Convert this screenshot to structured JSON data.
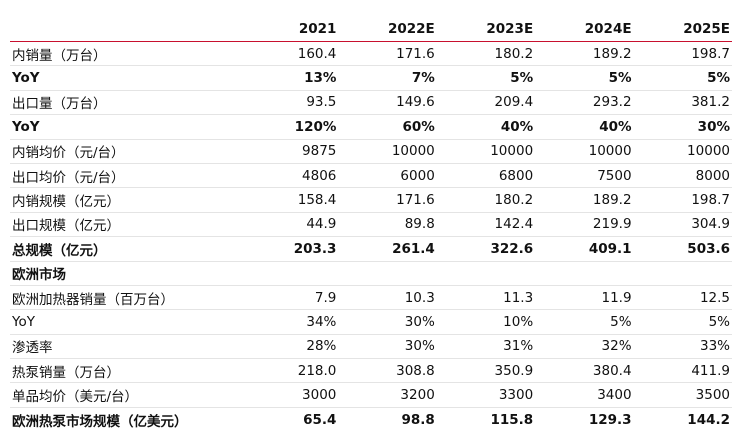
{
  "table": {
    "headers": [
      "",
      "2021",
      "2022E",
      "2023E",
      "2024E",
      "2025E"
    ],
    "rows": [
      {
        "label": "内销量（万台）",
        "bold": false,
        "values": [
          "160.4",
          "171.6",
          "180.2",
          "189.2",
          "198.7"
        ]
      },
      {
        "label": "YoY",
        "bold": true,
        "values": [
          "13%",
          "7%",
          "5%",
          "5%",
          "5%"
        ]
      },
      {
        "label": "出口量（万台）",
        "bold": false,
        "values": [
          "93.5",
          "149.6",
          "209.4",
          "293.2",
          "381.2"
        ]
      },
      {
        "label": "YoY",
        "bold": true,
        "values": [
          "120%",
          "60%",
          "40%",
          "40%",
          "30%"
        ]
      },
      {
        "label": "内销均价（元/台）",
        "bold": false,
        "values": [
          "9875",
          "10000",
          "10000",
          "10000",
          "10000"
        ]
      },
      {
        "label": "出口均价（元/台）",
        "bold": false,
        "values": [
          "4806",
          "6000",
          "6800",
          "7500",
          "8000"
        ]
      },
      {
        "label": "内销规模（亿元）",
        "bold": false,
        "values": [
          "158.4",
          "171.6",
          "180.2",
          "189.2",
          "198.7"
        ]
      },
      {
        "label": "出口规模（亿元）",
        "bold": false,
        "values": [
          "44.9",
          "89.8",
          "142.4",
          "219.9",
          "304.9"
        ]
      },
      {
        "label": "总规模（亿元）",
        "bold": true,
        "values": [
          "203.3",
          "261.4",
          "322.6",
          "409.1",
          "503.6"
        ]
      },
      {
        "label": "欧洲市场",
        "bold": true,
        "values": [
          "",
          "",
          "",
          "",
          ""
        ]
      },
      {
        "label": "欧洲加热器销量（百万台）",
        "bold": false,
        "values": [
          "7.9",
          "10.3",
          "11.3",
          "11.9",
          "12.5"
        ]
      },
      {
        "label": "YoY",
        "bold": false,
        "values": [
          "34%",
          "30%",
          "10%",
          "5%",
          "5%"
        ]
      },
      {
        "label": "渗透率",
        "bold": false,
        "values": [
          "28%",
          "30%",
          "31%",
          "32%",
          "33%"
        ]
      },
      {
        "label": "热泵销量（万台）",
        "bold": false,
        "values": [
          "218.0",
          "308.8",
          "350.9",
          "380.4",
          "411.9"
        ]
      },
      {
        "label": "单品均价（美元/台）",
        "bold": false,
        "values": [
          "3000",
          "3200",
          "3300",
          "3400",
          "3500"
        ]
      },
      {
        "label": "欧洲热泵市场规模（亿美元）",
        "bold": true,
        "values": [
          "65.4",
          "98.8",
          "115.8",
          "129.3",
          "144.2"
        ]
      }
    ]
  },
  "colors": {
    "header_rule": "#c8102e",
    "row_rule": "#e4e4e4",
    "text": "#111111"
  }
}
